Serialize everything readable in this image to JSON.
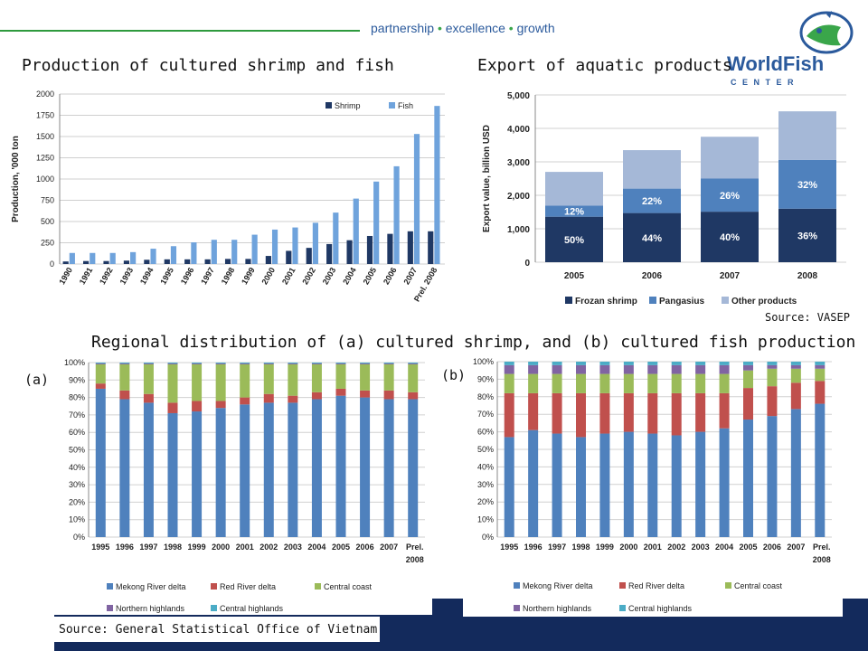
{
  "header": {
    "tagline_parts": [
      "partnership",
      "excellence",
      "growth"
    ],
    "tagline_sep": "•",
    "logo_word": "WorldFish",
    "logo_sub": "C E N T E R",
    "colors": {
      "brand_blue": "#2b5a9c",
      "brand_green": "#3aa64a",
      "footer": "#132a5c"
    }
  },
  "titles": {
    "production": "Production of cultured shrimp and fish",
    "export": "Export of aquatic products",
    "regional": "Regional distribution of (a) cultured shrimp, and (b) cultured fish production",
    "panel_a": "(a)",
    "panel_b": "(b)"
  },
  "sources": {
    "vasep": "Source: VASEP",
    "gso": "Source: General Statistical Office of Vietnam"
  },
  "chart_data": [
    {
      "id": "production",
      "type": "bar",
      "title": "",
      "xlabel": "",
      "ylabel": "Production, '000 ton",
      "ylim": [
        0,
        2000
      ],
      "yticks": [
        0,
        250,
        500,
        750,
        1000,
        1250,
        1500,
        1750,
        2000
      ],
      "grid": true,
      "legend": "top-right",
      "categories": [
        "1990",
        "1991",
        "1992",
        "1993",
        "1994",
        "1995",
        "1996",
        "1997",
        "1998",
        "1999",
        "2000",
        "2001",
        "2002",
        "2003",
        "2004",
        "2005",
        "2006",
        "2007",
        "Prel. 2008"
      ],
      "series": [
        {
          "name": "Shrimp",
          "color": "#1f3864",
          "values": [
            30,
            35,
            35,
            40,
            50,
            55,
            55,
            55,
            60,
            60,
            95,
            155,
            190,
            235,
            280,
            330,
            355,
            385,
            385
          ]
        },
        {
          "name": "Fish",
          "color": "#6fa3dc",
          "values": [
            130,
            130,
            130,
            140,
            180,
            210,
            255,
            285,
            285,
            345,
            405,
            430,
            485,
            605,
            770,
            970,
            1150,
            1530,
            1860
          ]
        }
      ]
    },
    {
      "id": "export",
      "type": "bar",
      "stacked": true,
      "title": "",
      "xlabel": "",
      "ylabel": "Export value, billion USD",
      "ylim": [
        0,
        5000
      ],
      "yticks": [
        "0",
        "1,000",
        "2,000",
        "3,000",
        "4,000",
        "5,000"
      ],
      "grid": true,
      "legend": "bottom",
      "categories": [
        "2005",
        "2006",
        "2007",
        "2008"
      ],
      "series": [
        {
          "name": "Frozan shrimp",
          "color": "#1f3864",
          "values": [
            1360,
            1470,
            1510,
            1600
          ],
          "labels": [
            "50%",
            "44%",
            "40%",
            "36%"
          ]
        },
        {
          "name": "Pangasius",
          "color": "#4f81bd",
          "values": [
            330,
            730,
            990,
            1460
          ],
          "labels": [
            "12%",
            "22%",
            "26%",
            "32%"
          ]
        },
        {
          "name": "Other products",
          "color": "#a5b8d7",
          "values": [
            1010,
            1150,
            1250,
            1450
          ],
          "labels": [
            "",
            "",
            "",
            ""
          ]
        }
      ]
    },
    {
      "id": "regional_shrimp",
      "type": "bar",
      "stacked": true,
      "title": "",
      "ylim": [
        0,
        100
      ],
      "yticks": [
        "0%",
        "10%",
        "20%",
        "30%",
        "40%",
        "50%",
        "60%",
        "70%",
        "80%",
        "90%",
        "100%"
      ],
      "grid": true,
      "legend": "bottom",
      "categories": [
        "1995",
        "1996",
        "1997",
        "1998",
        "1999",
        "2000",
        "2001",
        "2002",
        "2003",
        "2004",
        "2005",
        "2006",
        "2007",
        "Prel. 2008"
      ],
      "series": [
        {
          "name": "Mekong River delta",
          "color": "#4f81bd",
          "values": [
            85,
            79,
            77,
            71,
            72,
            74,
            76,
            77,
            77,
            79,
            81,
            80,
            79,
            79
          ]
        },
        {
          "name": "Red River delta",
          "color": "#c0504d",
          "values": [
            3,
            5,
            5,
            6,
            6,
            4,
            4,
            5,
            4,
            4,
            4,
            4,
            5,
            4
          ]
        },
        {
          "name": "Central coast",
          "color": "#9bbb59",
          "values": [
            11,
            15,
            17,
            22,
            21,
            21,
            19,
            17,
            18,
            16,
            14,
            15,
            15,
            16
          ]
        },
        {
          "name": "Northern highlands",
          "color": "#8064a2",
          "values": [
            0.5,
            0.5,
            0.5,
            0.5,
            0.5,
            0.5,
            0.5,
            0.5,
            0.5,
            0.5,
            0.5,
            0.5,
            0.5,
            0.5
          ]
        },
        {
          "name": "Central highlands",
          "color": "#4bacc6",
          "values": [
            0.5,
            0.5,
            0.5,
            0.5,
            0.5,
            0.5,
            0.5,
            0.5,
            0.5,
            0.5,
            0.5,
            0.5,
            0.5,
            0.5
          ]
        }
      ]
    },
    {
      "id": "regional_fish",
      "type": "bar",
      "stacked": true,
      "title": "",
      "ylim": [
        0,
        100
      ],
      "yticks": [
        "0%",
        "10%",
        "20%",
        "30%",
        "40%",
        "50%",
        "60%",
        "70%",
        "80%",
        "90%",
        "100%"
      ],
      "grid": true,
      "legend": "bottom",
      "categories": [
        "1995",
        "1996",
        "1997",
        "1998",
        "1999",
        "2000",
        "2001",
        "2002",
        "2003",
        "2004",
        "2005",
        "2006",
        "2007",
        "Prel. 2008"
      ],
      "series": [
        {
          "name": "Mekong River delta",
          "color": "#4f81bd",
          "values": [
            57,
            61,
            59,
            57,
            59,
            60,
            59,
            58,
            60,
            62,
            67,
            69,
            73,
            76
          ]
        },
        {
          "name": "Red River delta",
          "color": "#c0504d",
          "values": [
            25,
            21,
            23,
            25,
            23,
            22,
            23,
            24,
            22,
            20,
            18,
            17,
            15,
            13
          ]
        },
        {
          "name": "Central coast",
          "color": "#9bbb59",
          "values": [
            11,
            11,
            11,
            11,
            11,
            11,
            11,
            11,
            11,
            11,
            10,
            10,
            8,
            7
          ]
        },
        {
          "name": "Northern highlands",
          "color": "#8064a2",
          "values": [
            5,
            5,
            5,
            5,
            5,
            5,
            5,
            5,
            5,
            5,
            3,
            2,
            2,
            2
          ]
        },
        {
          "name": "Central highlands",
          "color": "#4bacc6",
          "values": [
            2,
            2,
            2,
            2,
            2,
            2,
            2,
            2,
            2,
            2,
            2,
            2,
            2,
            2
          ]
        }
      ]
    }
  ]
}
